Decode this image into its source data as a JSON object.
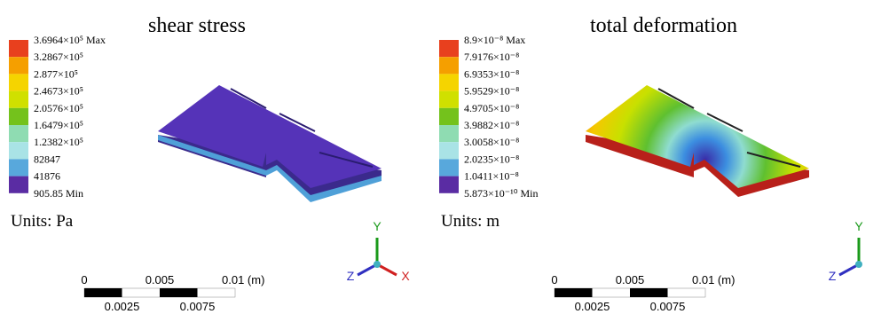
{
  "panels": [
    {
      "title": "shear stress",
      "legend": [
        "3.6964×10⁵ Max",
        "3.2867×10⁵",
        "2.877×10⁵",
        "2.4673×10⁵",
        "2.0576×10⁵",
        "1.6479×10⁵",
        "1.2382×10⁵",
        "82847",
        "41876",
        "905.85 Min"
      ],
      "units": "Units: Pa",
      "scale": {
        "top": [
          "0",
          "0.005",
          "0.01 (m)"
        ],
        "bottom": [
          "0.0025",
          "0.0075"
        ]
      },
      "axes": [
        "Y",
        "Z",
        "X"
      ]
    },
    {
      "title": "total deformation",
      "legend": [
        "8.9×10⁻⁸ Max",
        "7.9176×10⁻⁸",
        "6.9353×10⁻⁸",
        "5.9529×10⁻⁸",
        "4.9705×10⁻⁸",
        "3.9882×10⁻⁸",
        "3.0058×10⁻⁸",
        "2.0235×10⁻⁸",
        "1.0411×10⁻⁸",
        "5.873×10⁻¹⁰ Min"
      ],
      "units": "Units: m",
      "scale": {
        "top": [
          "0",
          "0.005",
          "0.01 (m)"
        ],
        "bottom": [
          "0.0025",
          "0.0075"
        ]
      },
      "axes": [
        "Y",
        "Z"
      ]
    }
  ],
  "legend_colors": [
    "#e8401e",
    "#f59f00",
    "#f5d400",
    "#d0e000",
    "#74c21c",
    "#8fdcb2",
    "#a9e3e6",
    "#58a8dc",
    "#5a2ca3"
  ]
}
